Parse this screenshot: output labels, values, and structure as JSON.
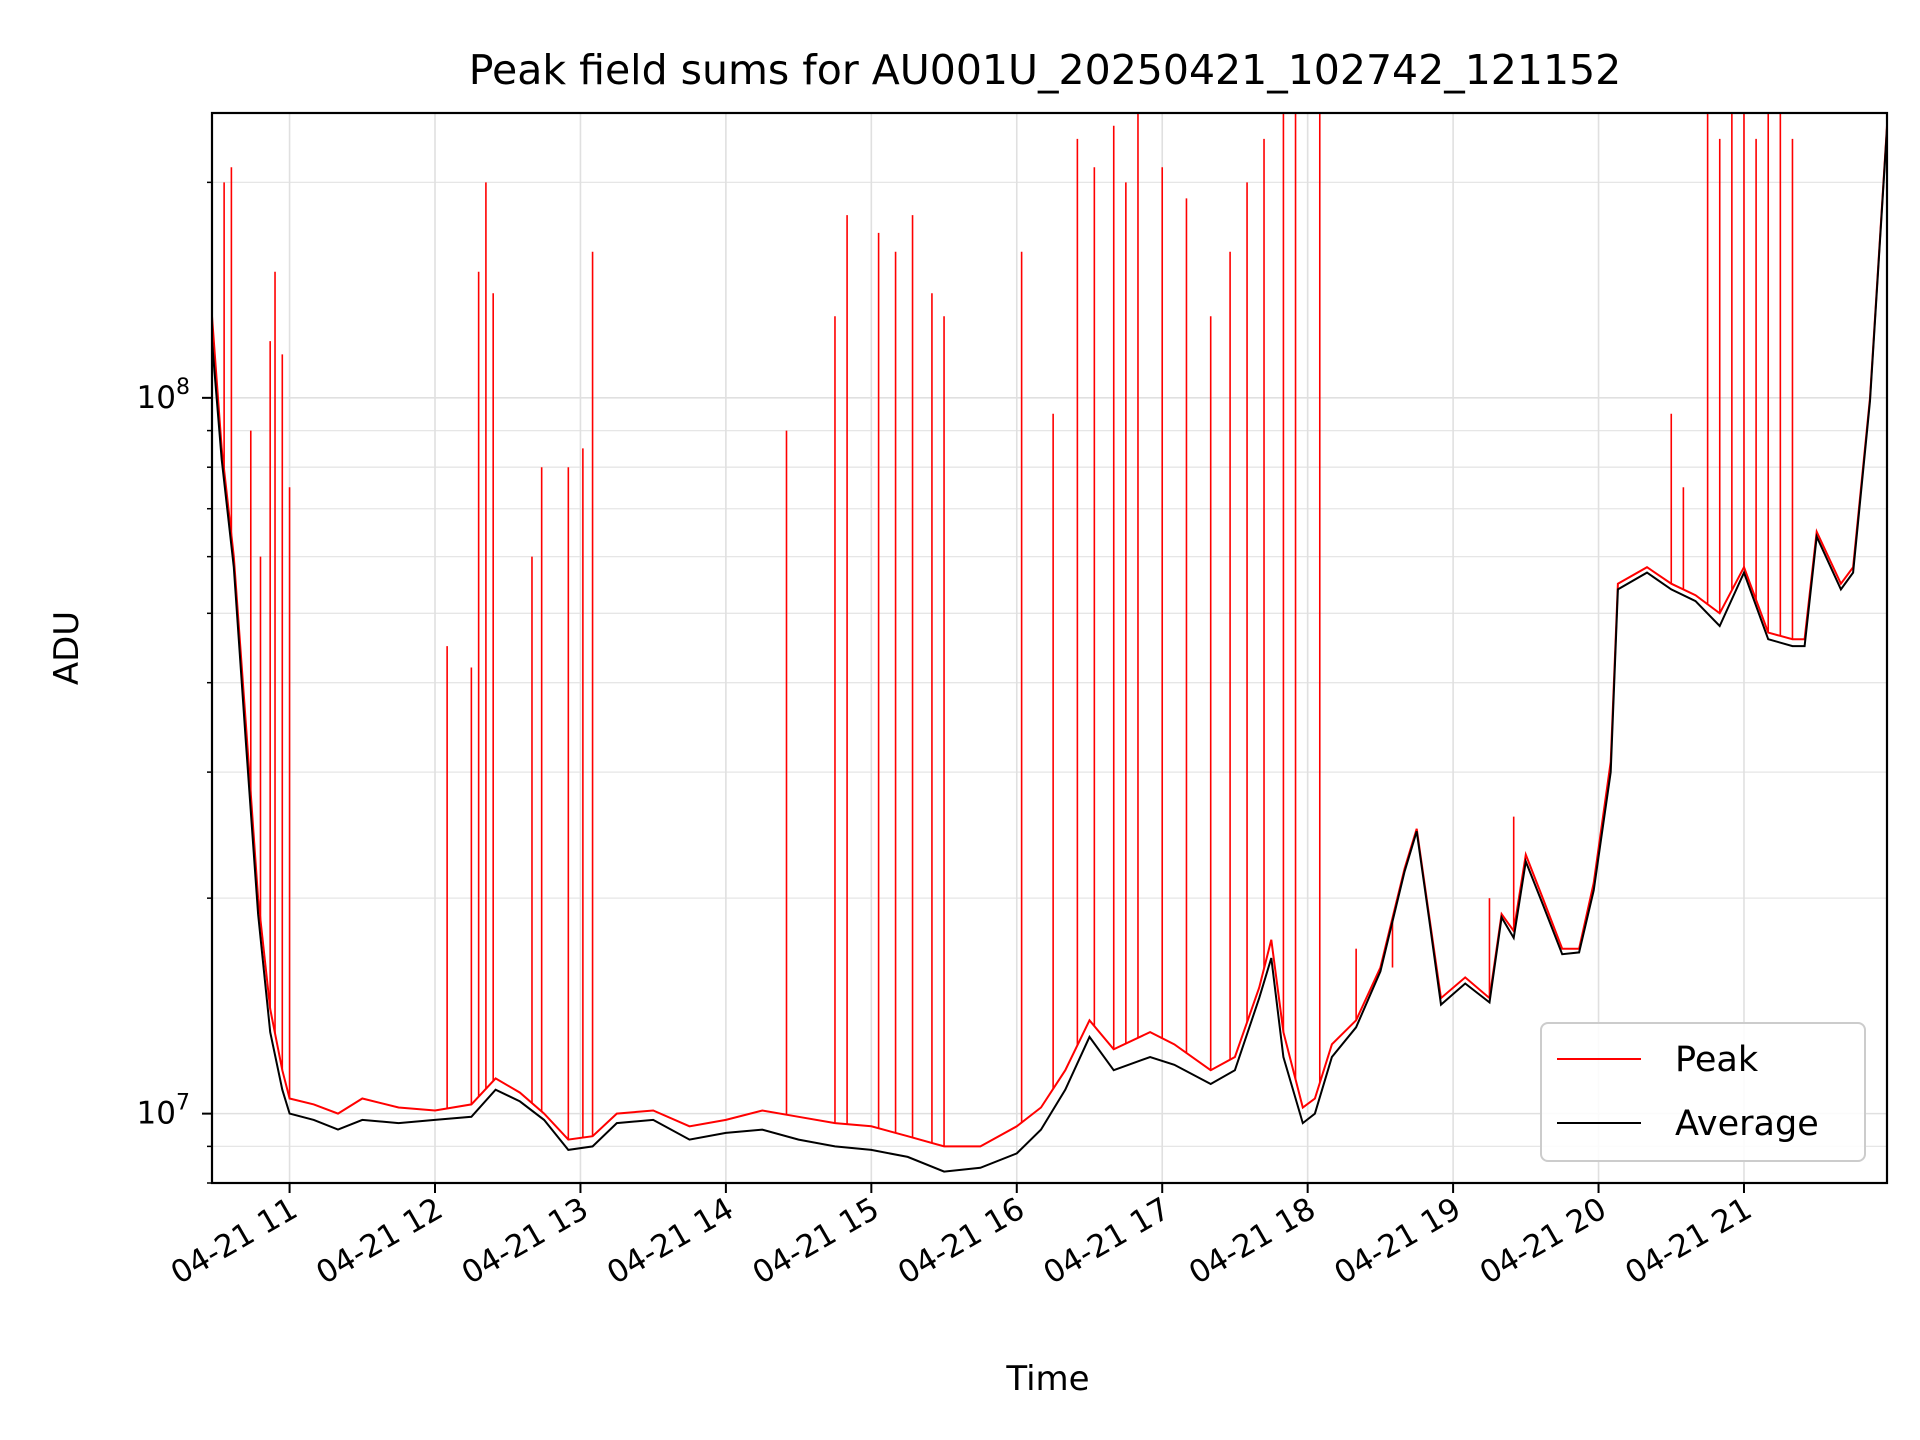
{
  "chart_data": {
    "type": "line",
    "title": "Peak field sums for AU001U_20250421_102742_121152",
    "xlabel": "Time",
    "ylabel": "ADU",
    "y_scale": "log",
    "ylim": [
      8000000,
      250000000
    ],
    "xlim": [
      "2025-04-21 10:28",
      "2025-04-21 21:59"
    ],
    "grid": true,
    "legend_position": "bottom-right",
    "x_tick_labels": [
      "04-21 11",
      "04-21 12",
      "04-21 13",
      "04-21 14",
      "04-21 15",
      "04-21 16",
      "04-21 17",
      "04-21 18",
      "04-21 19",
      "04-21 20",
      "04-21 21"
    ],
    "y_tick_labels": [
      {
        "base": "10",
        "exp": "7",
        "value": 10000000
      },
      {
        "base": "10",
        "exp": "8",
        "value": 100000000
      }
    ],
    "series": [
      {
        "name": "Peak",
        "color": "#ff0000",
        "points": [
          [
            "2025-04-21 10:28",
            130000000
          ],
          [
            "2025-04-21 10:32",
            85000000
          ],
          [
            "2025-04-21 10:37",
            60000000
          ],
          [
            "2025-04-21 10:42",
            35000000
          ],
          [
            "2025-04-21 10:47",
            20000000
          ],
          [
            "2025-04-21 10:52",
            14000000
          ],
          [
            "2025-04-21 10:57",
            11500000
          ],
          [
            "2025-04-21 11:00",
            10500000
          ],
          [
            "2025-04-21 11:10",
            10300000
          ],
          [
            "2025-04-21 11:20",
            10000000
          ],
          [
            "2025-04-21 11:30",
            10500000
          ],
          [
            "2025-04-21 11:45",
            10200000
          ],
          [
            "2025-04-21 12:00",
            10100000
          ],
          [
            "2025-04-21 12:15",
            10300000
          ],
          [
            "2025-04-21 12:25",
            11200000
          ],
          [
            "2025-04-21 12:35",
            10700000
          ],
          [
            "2025-04-21 12:45",
            10000000
          ],
          [
            "2025-04-21 12:55",
            9200000
          ],
          [
            "2025-04-21 13:05",
            9300000
          ],
          [
            "2025-04-21 13:15",
            10000000
          ],
          [
            "2025-04-21 13:30",
            10100000
          ],
          [
            "2025-04-21 13:45",
            9600000
          ],
          [
            "2025-04-21 14:00",
            9800000
          ],
          [
            "2025-04-21 14:15",
            10100000
          ],
          [
            "2025-04-21 14:30",
            9900000
          ],
          [
            "2025-04-21 14:45",
            9700000
          ],
          [
            "2025-04-21 15:00",
            9600000
          ],
          [
            "2025-04-21 15:15",
            9300000
          ],
          [
            "2025-04-21 15:30",
            9000000
          ],
          [
            "2025-04-21 15:45",
            9000000
          ],
          [
            "2025-04-21 16:00",
            9600000
          ],
          [
            "2025-04-21 16:10",
            10200000
          ],
          [
            "2025-04-21 16:20",
            11500000
          ],
          [
            "2025-04-21 16:30",
            13500000
          ],
          [
            "2025-04-21 16:40",
            12300000
          ],
          [
            "2025-04-21 16:55",
            13000000
          ],
          [
            "2025-04-21 17:05",
            12500000
          ],
          [
            "2025-04-21 17:20",
            11500000
          ],
          [
            "2025-04-21 17:30",
            12000000
          ],
          [
            "2025-04-21 17:40",
            15000000
          ],
          [
            "2025-04-21 17:45",
            17500000
          ],
          [
            "2025-04-21 17:50",
            13000000
          ],
          [
            "2025-04-21 17:58",
            10200000
          ],
          [
            "2025-04-21 18:03",
            10500000
          ],
          [
            "2025-04-21 18:10",
            12500000
          ],
          [
            "2025-04-21 18:20",
            13500000
          ],
          [
            "2025-04-21 18:30",
            16000000
          ],
          [
            "2025-04-21 18:40",
            22000000
          ],
          [
            "2025-04-21 18:45",
            25000000
          ],
          [
            "2025-04-21 18:50",
            19000000
          ],
          [
            "2025-04-21 18:55",
            14500000
          ],
          [
            "2025-04-21 19:05",
            15500000
          ],
          [
            "2025-04-21 19:15",
            14500000
          ],
          [
            "2025-04-21 19:20",
            19000000
          ],
          [
            "2025-04-21 19:25",
            18000000
          ],
          [
            "2025-04-21 19:30",
            23000000
          ],
          [
            "2025-04-21 19:37",
            20000000
          ],
          [
            "2025-04-21 19:45",
            17000000
          ],
          [
            "2025-04-21 19:52",
            17000000
          ],
          [
            "2025-04-21 19:58",
            21000000
          ],
          [
            "2025-04-21 20:05",
            31000000
          ],
          [
            "2025-04-21 20:08",
            55000000
          ],
          [
            "2025-04-21 20:20",
            58000000
          ],
          [
            "2025-04-21 20:30",
            55000000
          ],
          [
            "2025-04-21 20:40",
            53000000
          ],
          [
            "2025-04-21 20:50",
            50000000
          ],
          [
            "2025-04-21 21:00",
            58000000
          ],
          [
            "2025-04-21 21:10",
            47000000
          ],
          [
            "2025-04-21 21:20",
            46000000
          ],
          [
            "2025-04-21 21:25",
            46000000
          ],
          [
            "2025-04-21 21:30",
            65000000
          ],
          [
            "2025-04-21 21:40",
            55000000
          ],
          [
            "2025-04-21 21:45",
            58000000
          ],
          [
            "2025-04-21 21:52",
            100000000
          ],
          [
            "2025-04-21 21:59",
            240000000
          ]
        ],
        "spikes": [
          [
            "2025-04-21 10:33",
            200000000
          ],
          [
            "2025-04-21 10:36",
            210000000
          ],
          [
            "2025-04-21 10:44",
            90000000
          ],
          [
            "2025-04-21 10:48",
            60000000
          ],
          [
            "2025-04-21 10:52",
            120000000
          ],
          [
            "2025-04-21 10:54",
            150000000
          ],
          [
            "2025-04-21 10:57",
            115000000
          ],
          [
            "2025-04-21 11:00",
            75000000
          ],
          [
            "2025-04-21 12:05",
            45000000
          ],
          [
            "2025-04-21 12:15",
            42000000
          ],
          [
            "2025-04-21 12:18",
            150000000
          ],
          [
            "2025-04-21 12:21",
            200000000
          ],
          [
            "2025-04-21 12:24",
            140000000
          ],
          [
            "2025-04-21 12:40",
            60000000
          ],
          [
            "2025-04-21 12:44",
            80000000
          ],
          [
            "2025-04-21 12:55",
            80000000
          ],
          [
            "2025-04-21 13:01",
            85000000
          ],
          [
            "2025-04-21 13:05",
            160000000
          ],
          [
            "2025-04-21 14:25",
            90000000
          ],
          [
            "2025-04-21 14:45",
            130000000
          ],
          [
            "2025-04-21 14:50",
            180000000
          ],
          [
            "2025-04-21 15:03",
            170000000
          ],
          [
            "2025-04-21 15:10",
            160000000
          ],
          [
            "2025-04-21 15:17",
            180000000
          ],
          [
            "2025-04-21 15:25",
            140000000
          ],
          [
            "2025-04-21 15:30",
            130000000
          ],
          [
            "2025-04-21 16:02",
            160000000
          ],
          [
            "2025-04-21 16:15",
            95000000
          ],
          [
            "2025-04-21 16:25",
            230000000
          ],
          [
            "2025-04-21 16:32",
            210000000
          ],
          [
            "2025-04-21 16:40",
            240000000
          ],
          [
            "2025-04-21 16:45",
            200000000
          ],
          [
            "2025-04-21 16:50",
            250000000
          ],
          [
            "2025-04-21 17:00",
            210000000
          ],
          [
            "2025-04-21 17:10",
            190000000
          ],
          [
            "2025-04-21 17:20",
            130000000
          ],
          [
            "2025-04-21 17:28",
            160000000
          ],
          [
            "2025-04-21 17:35",
            200000000
          ],
          [
            "2025-04-21 17:42",
            230000000
          ],
          [
            "2025-04-21 17:50",
            250000000
          ],
          [
            "2025-04-21 17:55",
            250000000
          ],
          [
            "2025-04-21 18:05",
            250000000
          ],
          [
            "2025-04-21 18:20",
            17000000
          ],
          [
            "2025-04-21 18:35",
            16000000
          ],
          [
            "2025-04-21 19:15",
            20000000
          ],
          [
            "2025-04-21 19:25",
            26000000
          ],
          [
            "2025-04-21 20:30",
            95000000
          ],
          [
            "2025-04-21 20:35",
            75000000
          ],
          [
            "2025-04-21 20:45",
            250000000
          ],
          [
            "2025-04-21 20:50",
            230000000
          ],
          [
            "2025-04-21 20:55",
            250000000
          ],
          [
            "2025-04-21 21:00",
            250000000
          ],
          [
            "2025-04-21 21:05",
            230000000
          ],
          [
            "2025-04-21 21:10",
            250000000
          ],
          [
            "2025-04-21 21:15",
            250000000
          ],
          [
            "2025-04-21 21:20",
            230000000
          ]
        ]
      },
      {
        "name": "Average",
        "color": "#000000",
        "points": [
          [
            "2025-04-21 10:28",
            120000000
          ],
          [
            "2025-04-21 10:32",
            82000000
          ],
          [
            "2025-04-21 10:37",
            58000000
          ],
          [
            "2025-04-21 10:42",
            33000000
          ],
          [
            "2025-04-21 10:47",
            19000000
          ],
          [
            "2025-04-21 10:52",
            13000000
          ],
          [
            "2025-04-21 10:57",
            10800000
          ],
          [
            "2025-04-21 11:00",
            10000000
          ],
          [
            "2025-04-21 11:10",
            9800000
          ],
          [
            "2025-04-21 11:20",
            9500000
          ],
          [
            "2025-04-21 11:30",
            9800000
          ],
          [
            "2025-04-21 11:45",
            9700000
          ],
          [
            "2025-04-21 12:00",
            9800000
          ],
          [
            "2025-04-21 12:15",
            9900000
          ],
          [
            "2025-04-21 12:25",
            10800000
          ],
          [
            "2025-04-21 12:35",
            10400000
          ],
          [
            "2025-04-21 12:45",
            9800000
          ],
          [
            "2025-04-21 12:55",
            8900000
          ],
          [
            "2025-04-21 13:05",
            9000000
          ],
          [
            "2025-04-21 13:15",
            9700000
          ],
          [
            "2025-04-21 13:30",
            9800000
          ],
          [
            "2025-04-21 13:45",
            9200000
          ],
          [
            "2025-04-21 14:00",
            9400000
          ],
          [
            "2025-04-21 14:15",
            9500000
          ],
          [
            "2025-04-21 14:30",
            9200000
          ],
          [
            "2025-04-21 14:45",
            9000000
          ],
          [
            "2025-04-21 15:00",
            8900000
          ],
          [
            "2025-04-21 15:15",
            8700000
          ],
          [
            "2025-04-21 15:30",
            8300000
          ],
          [
            "2025-04-21 15:45",
            8400000
          ],
          [
            "2025-04-21 16:00",
            8800000
          ],
          [
            "2025-04-21 16:10",
            9500000
          ],
          [
            "2025-04-21 16:20",
            10800000
          ],
          [
            "2025-04-21 16:30",
            12800000
          ],
          [
            "2025-04-21 16:40",
            11500000
          ],
          [
            "2025-04-21 16:55",
            12000000
          ],
          [
            "2025-04-21 17:05",
            11700000
          ],
          [
            "2025-04-21 17:20",
            11000000
          ],
          [
            "2025-04-21 17:30",
            11500000
          ],
          [
            "2025-04-21 17:40",
            14500000
          ],
          [
            "2025-04-21 17:45",
            16500000
          ],
          [
            "2025-04-21 17:50",
            12000000
          ],
          [
            "2025-04-21 17:58",
            9700000
          ],
          [
            "2025-04-21 18:03",
            10000000
          ],
          [
            "2025-04-21 18:10",
            12000000
          ],
          [
            "2025-04-21 18:20",
            13200000
          ],
          [
            "2025-04-21 18:30",
            15800000
          ],
          [
            "2025-04-21 18:40",
            21800000
          ],
          [
            "2025-04-21 18:45",
            24800000
          ],
          [
            "2025-04-21 18:50",
            18800000
          ],
          [
            "2025-04-21 18:55",
            14200000
          ],
          [
            "2025-04-21 19:05",
            15200000
          ],
          [
            "2025-04-21 19:15",
            14300000
          ],
          [
            "2025-04-21 19:20",
            18800000
          ],
          [
            "2025-04-21 19:25",
            17600000
          ],
          [
            "2025-04-21 19:30",
            22500000
          ],
          [
            "2025-04-21 19:37",
            19600000
          ],
          [
            "2025-04-21 19:45",
            16700000
          ],
          [
            "2025-04-21 19:52",
            16800000
          ],
          [
            "2025-04-21 19:58",
            20500000
          ],
          [
            "2025-04-21 20:05",
            30000000
          ],
          [
            "2025-04-21 20:08",
            54000000
          ],
          [
            "2025-04-21 20:20",
            57000000
          ],
          [
            "2025-04-21 20:30",
            54000000
          ],
          [
            "2025-04-21 20:40",
            52000000
          ],
          [
            "2025-04-21 20:50",
            48000000
          ],
          [
            "2025-04-21 21:00",
            57000000
          ],
          [
            "2025-04-21 21:10",
            46000000
          ],
          [
            "2025-04-21 21:20",
            45000000
          ],
          [
            "2025-04-21 21:25",
            45000000
          ],
          [
            "2025-04-21 21:30",
            64000000
          ],
          [
            "2025-04-21 21:40",
            54000000
          ],
          [
            "2025-04-21 21:45",
            57000000
          ],
          [
            "2025-04-21 21:52",
            99000000
          ],
          [
            "2025-04-21 21:59",
            238000000
          ]
        ]
      }
    ]
  }
}
